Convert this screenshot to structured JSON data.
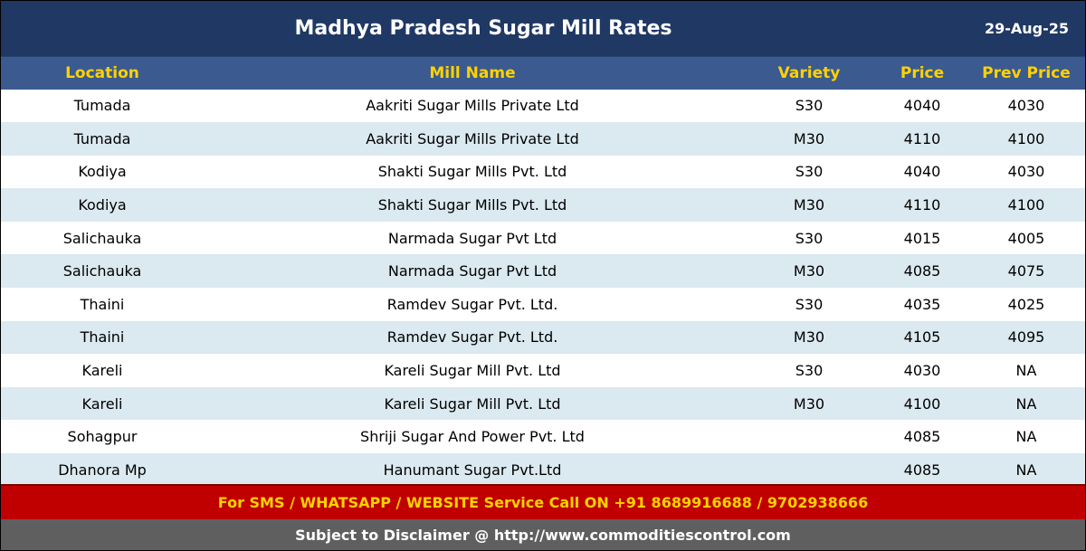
{
  "header": {
    "title": "Madhya Pradesh Sugar Mill Rates",
    "date": "29-Aug-25"
  },
  "table": {
    "columns": [
      "Location",
      "Mill Name",
      "Variety",
      "Price",
      "Prev Price"
    ],
    "rows": [
      [
        "Tumada",
        "Aakriti Sugar Mills Private Ltd",
        "S30",
        "4040",
        "4030"
      ],
      [
        "Tumada",
        "Aakriti Sugar Mills Private Ltd",
        "M30",
        "4110",
        "4100"
      ],
      [
        "Kodiya",
        "Shakti Sugar Mills Pvt. Ltd",
        "S30",
        "4040",
        "4030"
      ],
      [
        "Kodiya",
        "Shakti Sugar Mills Pvt. Ltd",
        "M30",
        "4110",
        "4100"
      ],
      [
        "Salichauka",
        "Narmada Sugar Pvt Ltd",
        "S30",
        "4015",
        "4005"
      ],
      [
        "Salichauka",
        "Narmada Sugar Pvt Ltd",
        "M30",
        "4085",
        "4075"
      ],
      [
        "Thaini",
        "Ramdev Sugar Pvt. Ltd.",
        "S30",
        "4035",
        "4025"
      ],
      [
        "Thaini",
        "Ramdev Sugar Pvt. Ltd.",
        "M30",
        "4105",
        "4095"
      ],
      [
        "Kareli",
        "Kareli Sugar Mill Pvt. Ltd",
        "S30",
        "4030",
        "NA"
      ],
      [
        "Kareli",
        "Kareli Sugar Mill Pvt. Ltd",
        "M30",
        "4100",
        "NA"
      ],
      [
        "Sohagpur",
        "Shriji Sugar And Power Pvt. Ltd",
        "",
        "4085",
        "NA"
      ],
      [
        "Dhanora Mp",
        "Hanumant Sugar Pvt.Ltd",
        "",
        "4085",
        "NA"
      ]
    ]
  },
  "footer": {
    "contact": "For SMS / WHATSAPP / WEBSITE Service Call  ON  +91 8689916688 / 9702938666",
    "disclaimer": "Subject to Disclaimer @  http://www.commoditiescontrol.com"
  },
  "colors": {
    "title_bg": "#1f3864",
    "header_bg": "#3b5a8f",
    "header_text": "#ffd200",
    "row_alt": "#dbe9f0",
    "contact_bg": "#c00000",
    "disclaimer_bg": "#5f5f5f"
  }
}
